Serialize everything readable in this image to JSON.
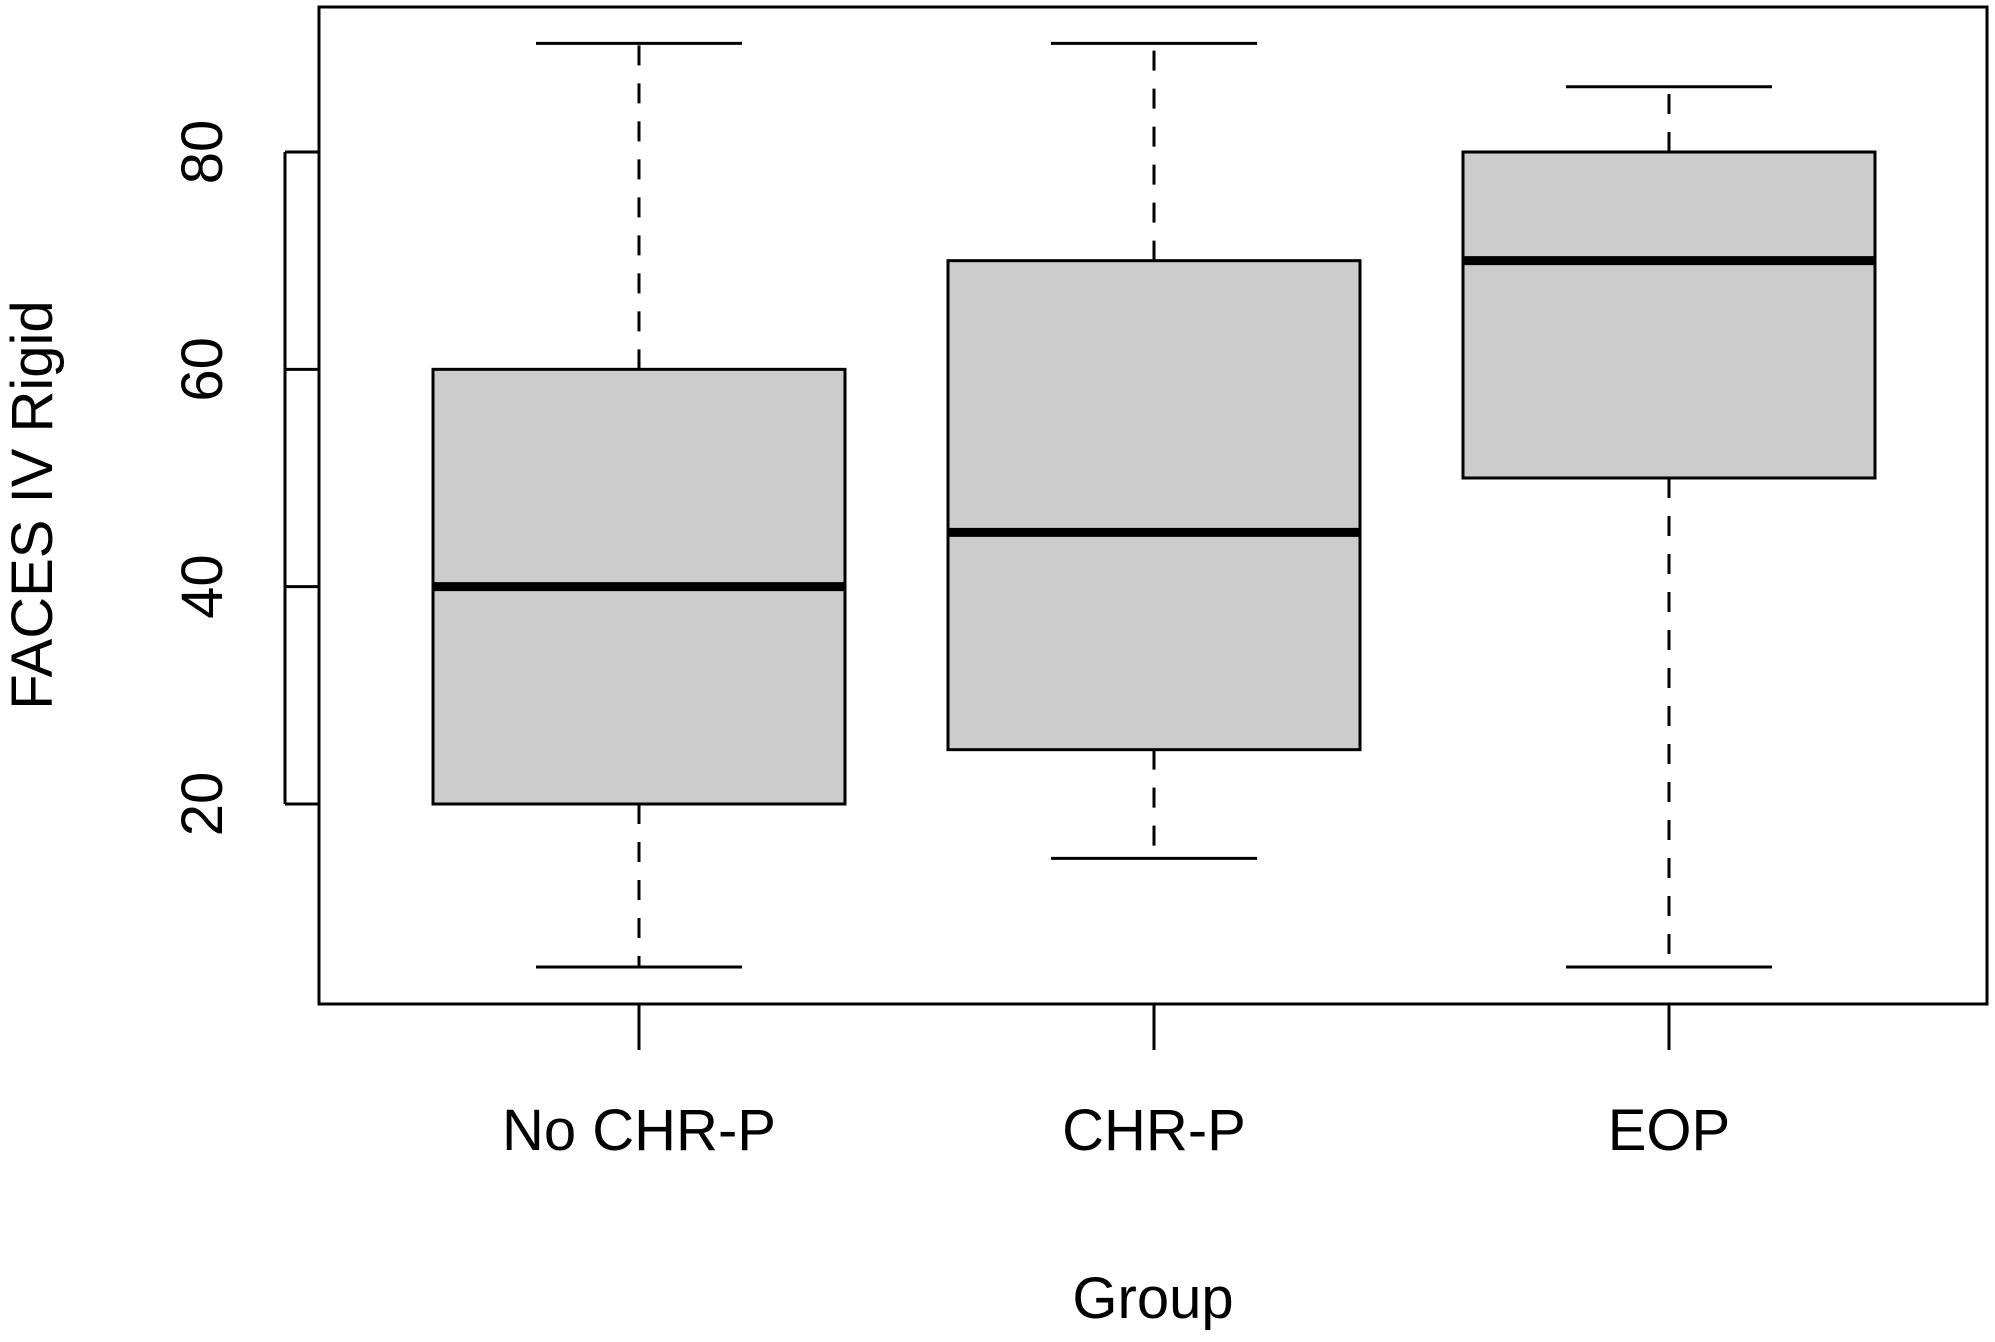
{
  "chart_data": {
    "type": "box",
    "title": "",
    "xlabel": "Group",
    "ylabel": "FACES IV Rigid",
    "ylim": [
      0,
      92
    ],
    "yticks": [
      20,
      40,
      60,
      80
    ],
    "categories": [
      "No CHR-P",
      "CHR-P",
      "EOP"
    ],
    "boxes": [
      {
        "category": "No CHR-P",
        "min": 5,
        "q1": 20,
        "median": 40,
        "q3": 60,
        "max": 90
      },
      {
        "category": "CHR-P",
        "min": 15,
        "q1": 25,
        "median": 45,
        "q3": 70,
        "max": 90
      },
      {
        "category": "EOP",
        "min": 5,
        "q1": 50,
        "median": 70,
        "q3": 80,
        "max": 86
      }
    ],
    "box_fill": "#cccccc",
    "line_color": "#000000",
    "grid": false,
    "legend": "none"
  }
}
